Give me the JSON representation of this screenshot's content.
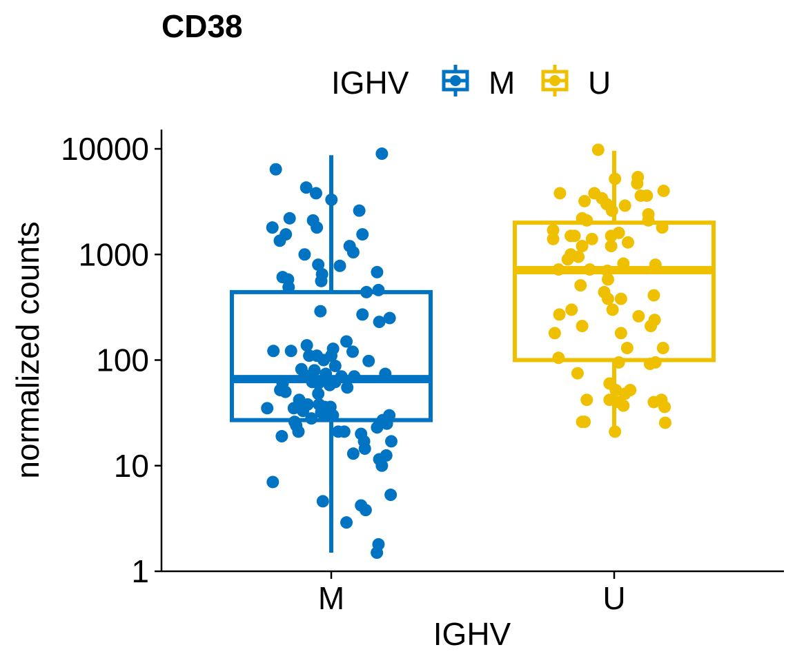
{
  "chart_data": {
    "type": "box",
    "title": "CD38",
    "xlabel": "IGHV",
    "ylabel": "normalized counts",
    "yscale": "log10",
    "ylim": [
      1,
      12000
    ],
    "yticks": [
      {
        "value": 1,
        "label": "1"
      },
      {
        "value": 10,
        "label": "10"
      },
      {
        "value": 100,
        "label": "100"
      },
      {
        "value": 1000,
        "label": "1000"
      },
      {
        "value": 10000,
        "label": "10000"
      }
    ],
    "categories": [
      "M",
      "U"
    ],
    "legend": {
      "title": "IGHV",
      "position": "top",
      "entries": [
        "M",
        "U"
      ]
    },
    "grid": false,
    "series": [
      {
        "name": "M",
        "color": "#0073C2",
        "box": {
          "whisker_low": 1.5,
          "q1": 27,
          "median": 66,
          "q3": 440,
          "whisker_high": 8700
        },
        "points": [
          {
            "x": -0.277,
            "y": 6400
          },
          {
            "x": 0.253,
            "y": 9000
          },
          {
            "x": -0.125,
            "y": 4300
          },
          {
            "x": -0.076,
            "y": 3800
          },
          {
            "x": 0.001,
            "y": 3300
          },
          {
            "x": 0.14,
            "y": 2600
          },
          {
            "x": -0.208,
            "y": 2200
          },
          {
            "x": -0.091,
            "y": 2100
          },
          {
            "x": -0.294,
            "y": 1800
          },
          {
            "x": -0.072,
            "y": 1800
          },
          {
            "x": -0.227,
            "y": 1550
          },
          {
            "x": 0.156,
            "y": 1550
          },
          {
            "x": -0.257,
            "y": 1350
          },
          {
            "x": 0.092,
            "y": 1200
          },
          {
            "x": 0.11,
            "y": 1050
          },
          {
            "x": -0.133,
            "y": 1000
          },
          {
            "x": -0.065,
            "y": 800
          },
          {
            "x": 0.043,
            "y": 780
          },
          {
            "x": 0.229,
            "y": 680
          },
          {
            "x": -0.046,
            "y": 650
          },
          {
            "x": -0.243,
            "y": 610
          },
          {
            "x": -0.216,
            "y": 580
          },
          {
            "x": -0.05,
            "y": 560
          },
          {
            "x": -0.213,
            "y": 490
          },
          {
            "x": 0.236,
            "y": 460
          },
          {
            "x": 0.176,
            "y": 440
          },
          {
            "x": -0.054,
            "y": 290
          },
          {
            "x": 0.156,
            "y": 270
          },
          {
            "x": 0.292,
            "y": 250
          },
          {
            "x": 0.24,
            "y": 230
          },
          {
            "x": -0.289,
            "y": 122
          },
          {
            "x": -0.201,
            "y": 122
          },
          {
            "x": 0.076,
            "y": 150
          },
          {
            "x": -0.122,
            "y": 138
          },
          {
            "x": -0.11,
            "y": 110
          },
          {
            "x": -0.072,
            "y": 110
          },
          {
            "x": 0.009,
            "y": 128
          },
          {
            "x": 0.107,
            "y": 120
          },
          {
            "x": -0.0,
            "y": 110
          },
          {
            "x": 0.187,
            "y": 98
          },
          {
            "x": -0.038,
            "y": 100
          },
          {
            "x": 0.02,
            "y": 88
          },
          {
            "x": -0.149,
            "y": 82
          },
          {
            "x": -0.084,
            "y": 80
          },
          {
            "x": -0.133,
            "y": 72
          },
          {
            "x": -0.027,
            "y": 74
          },
          {
            "x": 0.051,
            "y": 70
          },
          {
            "x": 0.115,
            "y": 70
          },
          {
            "x": 0.27,
            "y": 74
          },
          {
            "x": -0.243,
            "y": 60
          },
          {
            "x": -0.095,
            "y": 62
          },
          {
            "x": -0.065,
            "y": 60
          },
          {
            "x": 0.02,
            "y": 62
          },
          {
            "x": -0.008,
            "y": 58
          },
          {
            "x": 0.08,
            "y": 55
          },
          {
            "x": -0.255,
            "y": 52
          },
          {
            "x": -0.229,
            "y": 50
          },
          {
            "x": -0.065,
            "y": 48
          },
          {
            "x": -0.16,
            "y": 42
          },
          {
            "x": -0.118,
            "y": 38
          },
          {
            "x": -0.061,
            "y": 38
          },
          {
            "x": -0.034,
            "y": 36
          },
          {
            "x": -0.004,
            "y": 36
          },
          {
            "x": -0.32,
            "y": 35
          },
          {
            "x": -0.187,
            "y": 35
          },
          {
            "x": -0.141,
            "y": 33
          },
          {
            "x": -0.05,
            "y": 32
          },
          {
            "x": -0.027,
            "y": 30
          },
          {
            "x": 0.008,
            "y": 30
          },
          {
            "x": 0.29,
            "y": 30
          },
          {
            "x": -0.099,
            "y": 28
          },
          {
            "x": 0.257,
            "y": 27
          },
          {
            "x": -0.183,
            "y": 26
          },
          {
            "x": 0.278,
            "y": 25
          },
          {
            "x": -0.175,
            "y": 24
          },
          {
            "x": 0.229,
            "y": 23
          },
          {
            "x": -0.164,
            "y": 21
          },
          {
            "x": 0.035,
            "y": 21
          },
          {
            "x": 0.065,
            "y": 21
          },
          {
            "x": 0.149,
            "y": 20
          },
          {
            "x": -0.247,
            "y": 19
          },
          {
            "x": 0.164,
            "y": 17
          },
          {
            "x": 0.3,
            "y": 17
          },
          {
            "x": 0.168,
            "y": 14.5
          },
          {
            "x": 0.11,
            "y": 13
          },
          {
            "x": 0.275,
            "y": 12.5
          },
          {
            "x": 0.24,
            "y": 11.5
          },
          {
            "x": 0.253,
            "y": 10
          },
          {
            "x": -0.292,
            "y": 7
          },
          {
            "x": 0.297,
            "y": 5.3
          },
          {
            "x": -0.042,
            "y": 4.6
          },
          {
            "x": 0.149,
            "y": 4.2
          },
          {
            "x": 0.172,
            "y": 3.8
          },
          {
            "x": 0.076,
            "y": 2.9
          },
          {
            "x": 0.236,
            "y": 1.8
          },
          {
            "x": 0.228,
            "y": 1.5
          }
        ]
      },
      {
        "name": "U",
        "color": "#EFC000",
        "box": {
          "whisker_low": 21,
          "q1": 100,
          "median": 710,
          "q3": 2000,
          "whisker_high": 9600
        },
        "points": [
          {
            "x": -0.08,
            "y": 9800
          },
          {
            "x": 0.118,
            "y": 5400
          },
          {
            "x": 0.004,
            "y": 5200
          },
          {
            "x": 0.115,
            "y": 4700
          },
          {
            "x": 0.247,
            "y": 4000
          },
          {
            "x": -0.271,
            "y": 3800
          },
          {
            "x": -0.099,
            "y": 3800
          },
          {
            "x": 0.133,
            "y": 3600
          },
          {
            "x": 0.163,
            "y": 3600
          },
          {
            "x": -0.061,
            "y": 3400
          },
          {
            "x": -0.148,
            "y": 3200
          },
          {
            "x": -0.038,
            "y": 3000
          },
          {
            "x": 0.054,
            "y": 2900
          },
          {
            "x": -0.011,
            "y": 2600
          },
          {
            "x": 0.171,
            "y": 2400
          },
          {
            "x": -0.16,
            "y": 2200
          },
          {
            "x": -0.137,
            "y": 2100
          },
          {
            "x": 0.171,
            "y": 2100
          },
          {
            "x": 0.24,
            "y": 1800
          },
          {
            "x": -0.305,
            "y": 1700
          },
          {
            "x": 0.023,
            "y": 1600
          },
          {
            "x": -0.217,
            "y": 1500
          },
          {
            "x": -0.198,
            "y": 1500
          },
          {
            "x": -0.015,
            "y": 1500
          },
          {
            "x": -0.111,
            "y": 1400
          },
          {
            "x": -0.305,
            "y": 1400
          },
          {
            "x": 0.069,
            "y": 1300
          },
          {
            "x": -0.16,
            "y": 1200
          },
          {
            "x": -0.015,
            "y": 1200
          },
          {
            "x": -0.217,
            "y": 1000
          },
          {
            "x": -0.179,
            "y": 950
          },
          {
            "x": -0.232,
            "y": 900
          },
          {
            "x": 0.046,
            "y": 820
          },
          {
            "x": 0.206,
            "y": 800
          },
          {
            "x": -0.278,
            "y": 720
          },
          {
            "x": -0.122,
            "y": 720
          },
          {
            "x": -0.034,
            "y": 700
          },
          {
            "x": -0.031,
            "y": 580
          },
          {
            "x": -0.168,
            "y": 510
          },
          {
            "x": -0.05,
            "y": 440
          },
          {
            "x": -0.031,
            "y": 380
          },
          {
            "x": 0.034,
            "y": 380
          },
          {
            "x": 0.198,
            "y": 410
          },
          {
            "x": -0.213,
            "y": 300
          },
          {
            "x": -0.008,
            "y": 300
          },
          {
            "x": -0.274,
            "y": 270
          },
          {
            "x": 0.122,
            "y": 260
          },
          {
            "x": 0.202,
            "y": 240
          },
          {
            "x": 0.183,
            "y": 210
          },
          {
            "x": -0.16,
            "y": 210
          },
          {
            "x": -0.297,
            "y": 180
          },
          {
            "x": 0.034,
            "y": 180
          },
          {
            "x": 0.244,
            "y": 130
          },
          {
            "x": 0.065,
            "y": 130
          },
          {
            "x": -0.278,
            "y": 105
          },
          {
            "x": 0.023,
            "y": 95
          },
          {
            "x": 0.206,
            "y": 95
          },
          {
            "x": 0.179,
            "y": 92
          },
          {
            "x": -0.183,
            "y": 75
          },
          {
            "x": -0.023,
            "y": 60
          },
          {
            "x": 0.008,
            "y": 52
          },
          {
            "x": 0.08,
            "y": 52
          },
          {
            "x": 0.054,
            "y": 48
          },
          {
            "x": -0.137,
            "y": 42
          },
          {
            "x": -0.023,
            "y": 42
          },
          {
            "x": 0.023,
            "y": 40
          },
          {
            "x": 0.236,
            "y": 42
          },
          {
            "x": 0.198,
            "y": 40
          },
          {
            "x": 0.046,
            "y": 37
          },
          {
            "x": 0.252,
            "y": 36
          },
          {
            "x": -0.16,
            "y": 26
          },
          {
            "x": -0.148,
            "y": 26
          },
          {
            "x": 0.255,
            "y": 25.5
          },
          {
            "x": 0.004,
            "y": 21
          }
        ]
      }
    ]
  }
}
